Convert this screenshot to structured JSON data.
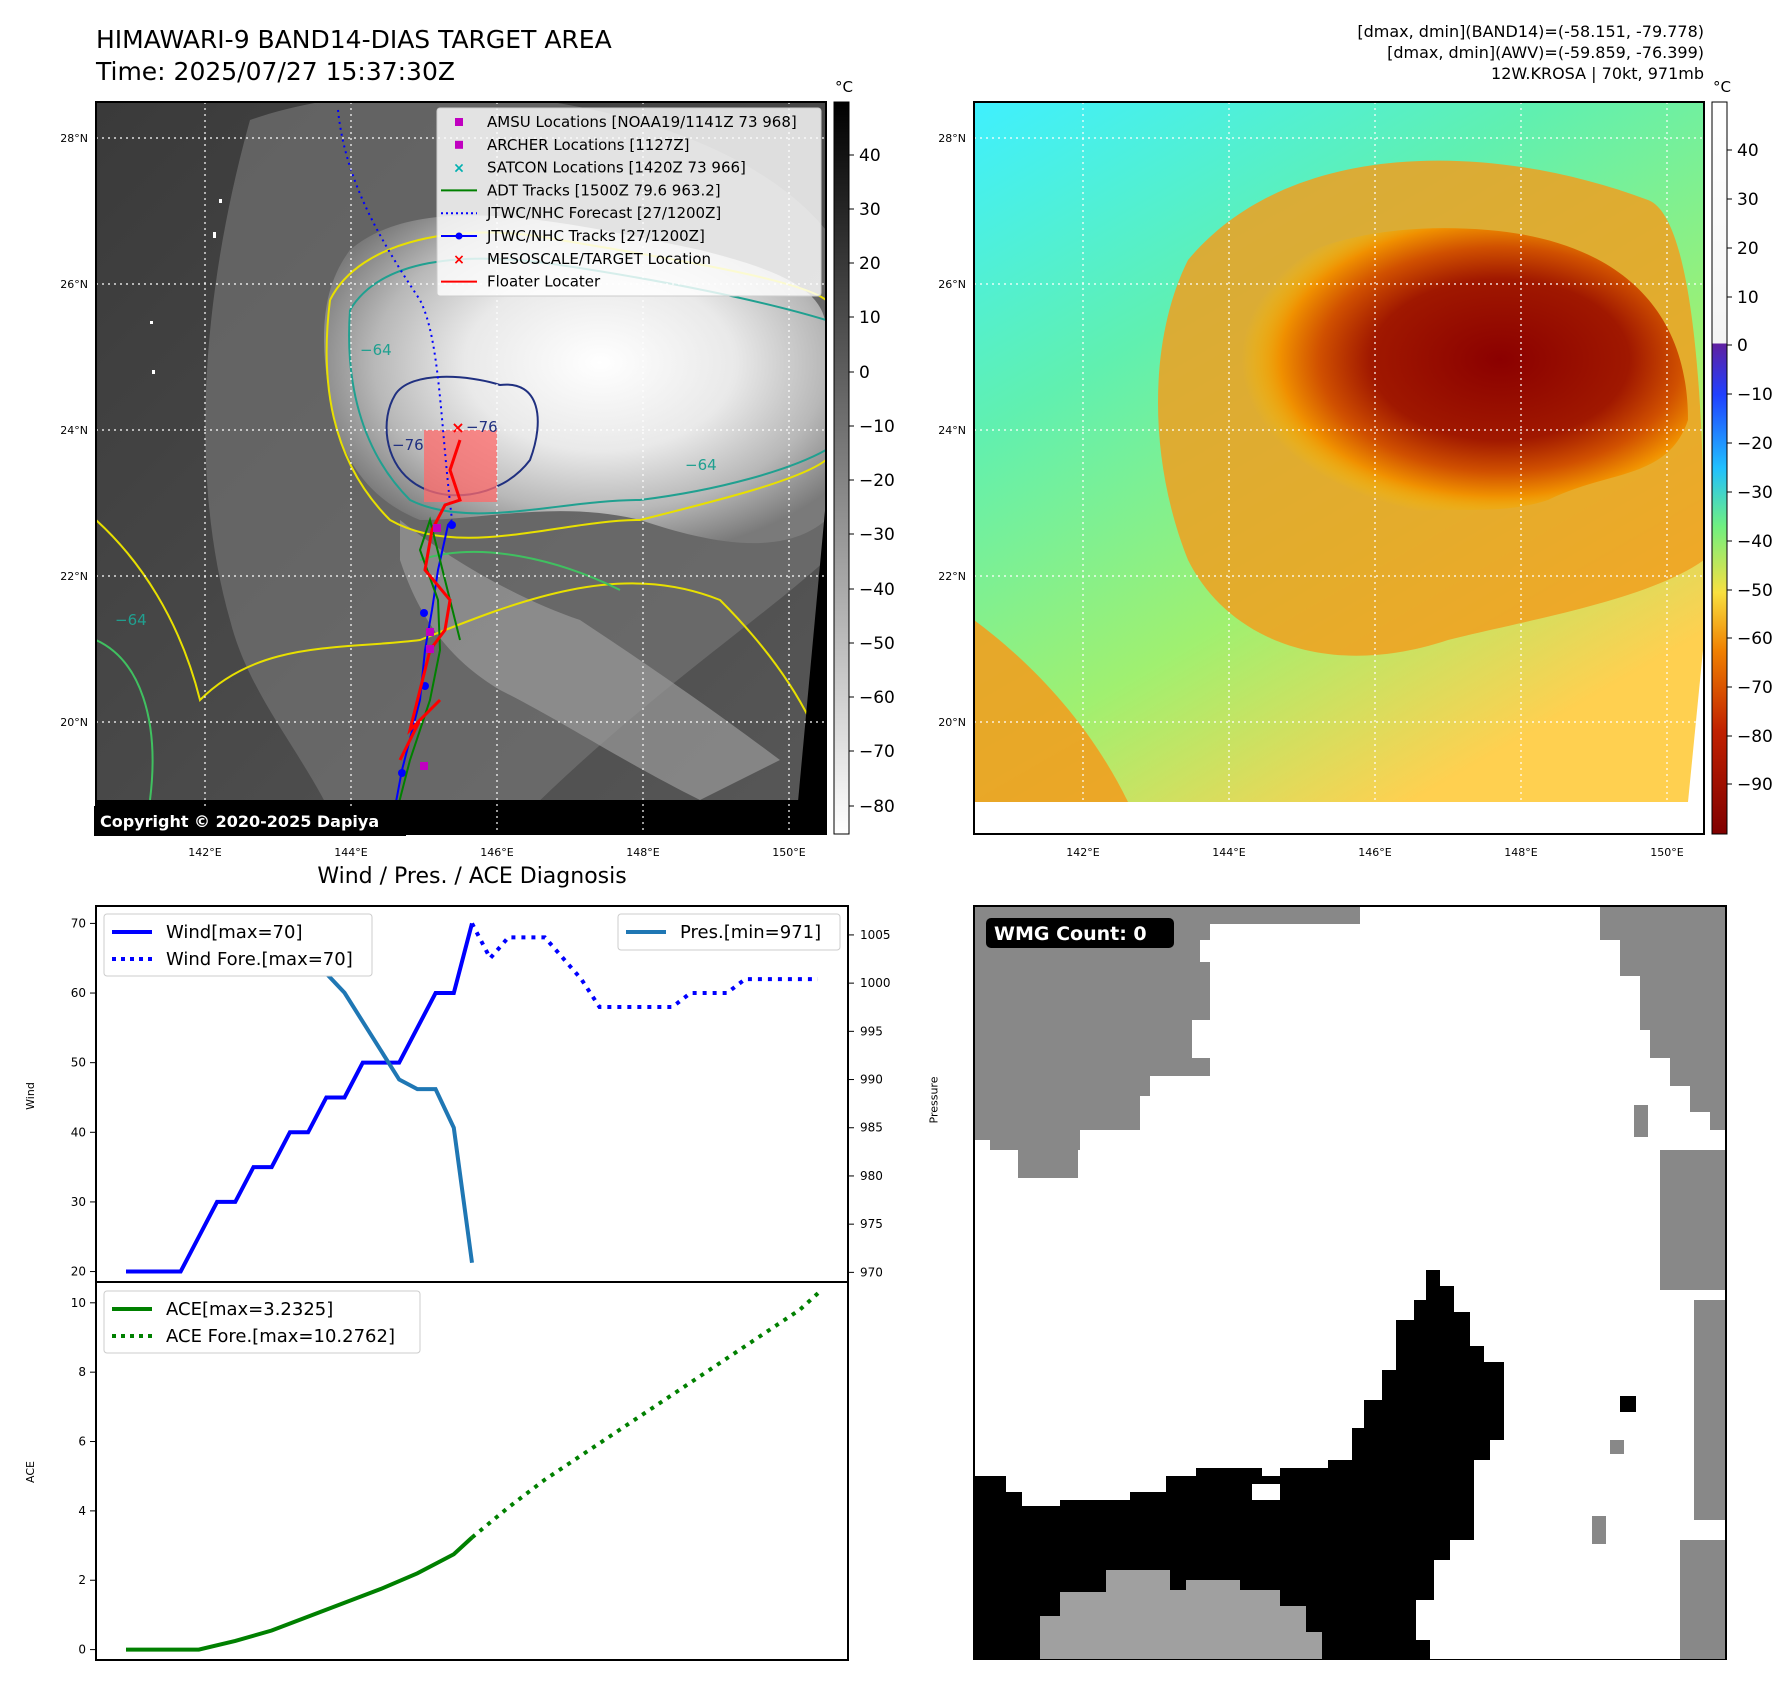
{
  "header": {
    "title_line1": "HIMAWARI-9 BAND14-DIAS TARGET AREA",
    "title_line2": "Time: 2025/07/27 15:37:30Z",
    "info_line1": "[dmax, dmin](BAND14)=(-58.151, -79.778)",
    "info_line2": "[dmax, dmin](AWV)=(-59.859, -76.399)",
    "info_line3": "12W.KROSA | 70kt, 971mb"
  },
  "ir_map": {
    "lat_labels": [
      "28°N",
      "26°N",
      "24°N",
      "22°N",
      "20°N"
    ],
    "lon_labels": [
      "142°E",
      "144°E",
      "146°E",
      "148°E",
      "150°E"
    ],
    "colorbar_unit": "°C",
    "colorbar_ticks": [
      "40",
      "30",
      "20",
      "10",
      "0",
      "−10",
      "−20",
      "−30",
      "−40",
      "−50",
      "−60",
      "−70",
      "−80"
    ],
    "copyright": "Copyright © 2020-2025 Dapiya",
    "contour_labels": [
      "−64",
      "−76",
      "−76",
      "−64",
      "−64"
    ],
    "legend": [
      {
        "label": "AMSU Locations [NOAA19/1141Z 73 968]",
        "color": "#c000c0",
        "marker": "square"
      },
      {
        "label": "ARCHER Locations [1127Z]",
        "color": "#c000c0",
        "marker": "square"
      },
      {
        "label": "SATCON Locations [1420Z 73 966]",
        "color": "#00b0b0",
        "marker": "x"
      },
      {
        "label": "ADT Tracks [1500Z 79.6 963.2]",
        "color": "#008000",
        "marker": "line"
      },
      {
        "label": "JTWC/NHC Forecast [27/1200Z]",
        "color": "#0000ff",
        "marker": "dotted"
      },
      {
        "label": "JTWC/NHC Tracks [27/1200Z]",
        "color": "#0000ff",
        "marker": "line-dot"
      },
      {
        "label": "MESOSCALE/TARGET Location",
        "color": "#ff0000",
        "marker": "x"
      },
      {
        "label": "Floater Locater",
        "color": "#ff0000",
        "marker": "line"
      }
    ]
  },
  "awv_map": {
    "lat_labels": [
      "28°N",
      "26°N",
      "24°N",
      "22°N",
      "20°N"
    ],
    "lon_labels": [
      "142°E",
      "144°E",
      "146°E",
      "148°E",
      "150°E"
    ],
    "colorbar_unit": "°C",
    "colorbar_ticks": [
      "40",
      "30",
      "20",
      "10",
      "0",
      "−10",
      "−20",
      "−30",
      "−40",
      "−50",
      "−60",
      "−70",
      "−80",
      "−90"
    ]
  },
  "diag": {
    "title": "Wind / Pres. / ACE Diagnosis",
    "wind_ylabel": "Wind",
    "pres_ylabel": "Pressure",
    "ace_ylabel": "ACE",
    "wind_ticks": [
      "70",
      "60",
      "50",
      "40",
      "30",
      "20"
    ],
    "pres_ticks": [
      "1005",
      "1000",
      "995",
      "990",
      "985",
      "980",
      "975",
      "970"
    ],
    "ace_ticks": [
      "10",
      "8",
      "6",
      "4",
      "2",
      "0"
    ],
    "legend_wind": "Wind[max=70]",
    "legend_wind_fore": "Wind Fore.[max=70]",
    "legend_pres": "Pres.[min=971]",
    "legend_ace": "ACE[max=3.2325]",
    "legend_ace_fore": "ACE Fore.[max=10.2762]"
  },
  "wmg": {
    "badge": "WMG Count: 0"
  },
  "chart_data": [
    {
      "type": "line",
      "title": "Wind / Pres. / ACE Diagnosis",
      "ylabel": "Wind",
      "ylim": [
        18.5,
        72.5
      ],
      "series": [
        {
          "name": "Wind[max=70]",
          "color": "#0000ff",
          "style": "solid",
          "x": [
            0,
            1,
            2,
            3,
            4,
            5,
            6,
            7,
            8,
            9,
            10,
            11,
            12,
            13,
            14,
            15,
            16,
            17,
            18,
            19
          ],
          "values": [
            20,
            20,
            20,
            20,
            25,
            30,
            30,
            35,
            35,
            40,
            40,
            45,
            45,
            50,
            50,
            50,
            55,
            60,
            60,
            70
          ]
        },
        {
          "name": "Wind Fore.[max=70]",
          "color": "#0000ff",
          "style": "dotted",
          "x": [
            19,
            20,
            21,
            22,
            23,
            24,
            25,
            26,
            27,
            28,
            29,
            30,
            31,
            32,
            33,
            34,
            35,
            36,
            37,
            38
          ],
          "values": [
            70,
            65,
            68,
            68,
            68,
            65,
            62,
            58,
            58,
            58,
            58,
            58,
            60,
            60,
            60,
            62,
            62,
            62,
            62,
            62
          ]
        }
      ]
    },
    {
      "type": "line",
      "ylabel": "Pressure",
      "ylim": [
        969,
        1008
      ],
      "series": [
        {
          "name": "Pres.[min=971]",
          "color": "#1f77b4",
          "style": "solid",
          "x": [
            0,
            1,
            2,
            3,
            4,
            5,
            6,
            7,
            8,
            9,
            10,
            11,
            12,
            13,
            14,
            15,
            16,
            17,
            18,
            19
          ],
          "values": [
            1007,
            1007,
            1007,
            1007,
            1005,
            1005,
            1004,
            1002,
            1002,
            1001,
            1001,
            1001,
            999,
            996,
            993,
            990,
            989,
            989,
            985,
            971
          ]
        }
      ]
    },
    {
      "type": "line",
      "ylabel": "ACE",
      "ylim": [
        -0.3,
        10.6
      ],
      "series": [
        {
          "name": "ACE[max=3.2325]",
          "color": "#008000",
          "style": "solid",
          "x": [
            0,
            2,
            4,
            6,
            8,
            10,
            12,
            14,
            16,
            18,
            19
          ],
          "values": [
            0,
            0,
            0,
            0.25,
            0.55,
            0.95,
            1.35,
            1.75,
            2.2,
            2.75,
            3.2325
          ]
        },
        {
          "name": "ACE Fore.[max=10.2762]",
          "color": "#008000",
          "style": "dotted",
          "x": [
            19,
            21,
            23,
            25,
            27,
            29,
            31,
            33,
            35,
            37,
            38
          ],
          "values": [
            3.2325,
            4.1,
            4.9,
            5.6,
            6.3,
            7.0,
            7.7,
            8.4,
            9.1,
            9.8,
            10.2762
          ]
        }
      ]
    }
  ]
}
